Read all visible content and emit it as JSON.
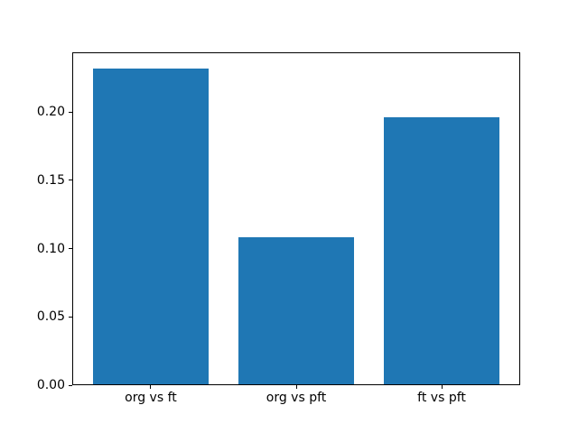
{
  "figure": {
    "background_color": "#ffffff",
    "spine_color": "#000000",
    "text_color": "#000000"
  },
  "chart_data": {
    "type": "bar",
    "title": "",
    "xlabel": "",
    "ylabel": "",
    "categories": [
      "org vs ft",
      "org vs pft",
      "ft vs pft"
    ],
    "values": [
      0.232,
      0.108,
      0.196
    ],
    "ylim": [
      0,
      0.2436
    ],
    "yticks": [
      0.0,
      0.05,
      0.1,
      0.15,
      0.2
    ],
    "ytick_labels": [
      "0.00",
      "0.05",
      "0.10",
      "0.15",
      "0.20"
    ],
    "bar_color": "#1f77b4",
    "bar_width_fraction": 0.8,
    "x_margin_fraction": 0.05,
    "grid": false,
    "legend": null
  }
}
